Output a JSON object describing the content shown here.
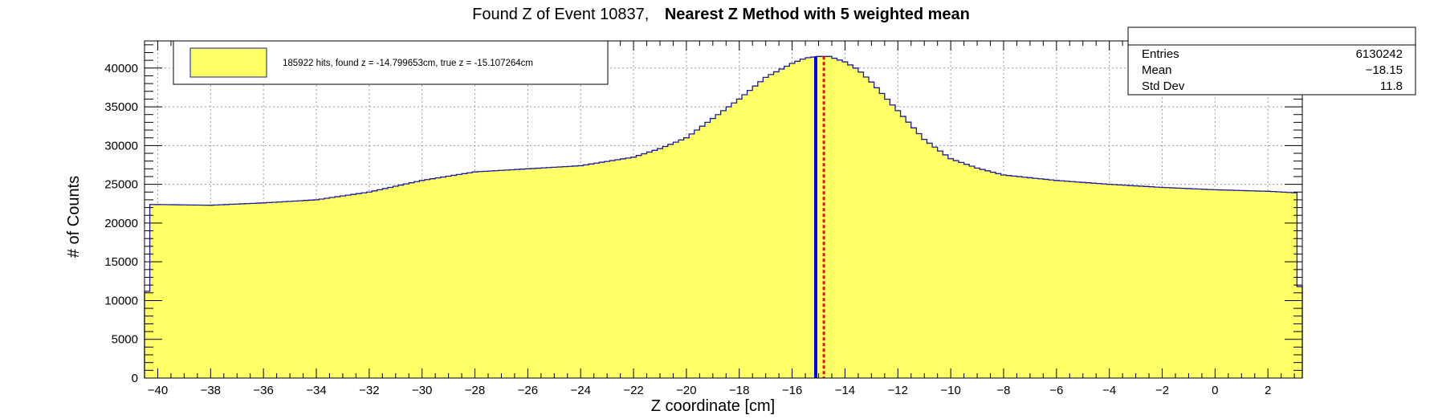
{
  "chart_data": {
    "type": "histogram",
    "title_prefix": "Found Z of Event 10837,",
    "title_bold": "Nearest Z Method with 5 weighted mean",
    "xlabel": "Z coordinate [cm]",
    "ylabel": "# of Counts",
    "xlim": [
      -40.5,
      3.3
    ],
    "ylim": [
      0,
      43500
    ],
    "x_ticks": [
      -40,
      -38,
      -36,
      -34,
      -32,
      -30,
      -28,
      -26,
      -24,
      -22,
      -20,
      -18,
      -16,
      -14,
      -12,
      -10,
      -8,
      -6,
      -4,
      -2,
      0,
      2
    ],
    "y_ticks": [
      0,
      5000,
      10000,
      15000,
      20000,
      25000,
      30000,
      35000,
      40000
    ],
    "grid": true,
    "legend_placement": "top-left",
    "legend_label": "185922 hits, found z = -14.799653cm, true z = -15.107264cm",
    "stats": {
      "entries_label": "Entries",
      "entries_value": "6130242",
      "mean_label": "Mean",
      "mean_value": "−18.15",
      "std_label": "Std Dev",
      "std_value": "11.8"
    },
    "bin_width": 0.2,
    "hist_profile_x": [
      -40.5,
      -40.3,
      -40.2,
      -38.0,
      -36.0,
      -34.0,
      -32.0,
      -30.0,
      -28.0,
      -26.0,
      -24.0,
      -22.0,
      -21.0,
      -20.0,
      -19.0,
      -18.0,
      -17.0,
      -16.0,
      -15.5,
      -15.0,
      -14.6,
      -14.0,
      -13.5,
      -13.0,
      -12.0,
      -11.0,
      -10.0,
      -9.0,
      -8.0,
      -6.0,
      -4.0,
      -2.0,
      0.0,
      2.0,
      3.1,
      3.1,
      3.3
    ],
    "hist_profile_y": [
      11200,
      11200,
      22400,
      22300,
      22600,
      23000,
      24000,
      25500,
      26600,
      27000,
      27400,
      28500,
      29600,
      31000,
      33500,
      36000,
      38800,
      40600,
      41300,
      41500,
      41500,
      40800,
      39800,
      38200,
      34500,
      30800,
      28300,
      27100,
      26200,
      25500,
      25000,
      24600,
      24300,
      24100,
      23900,
      11800,
      11800
    ],
    "found_z": -14.799653,
    "true_z": -15.107264,
    "colors": {
      "fill": "#ffff66",
      "outline": "#1a1aa0",
      "true_line": "#0000ff",
      "found_line": "#ff0000",
      "grid": "#999999"
    }
  }
}
